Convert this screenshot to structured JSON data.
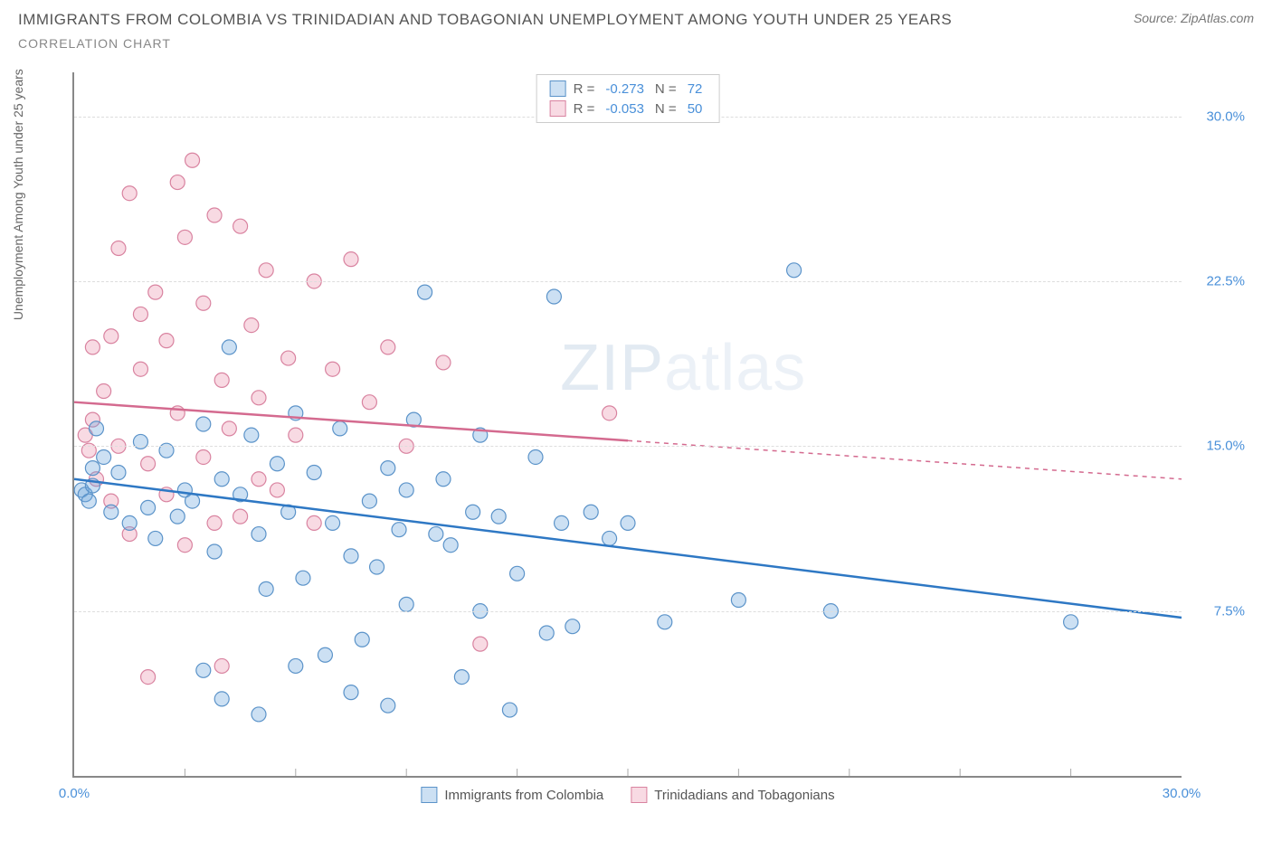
{
  "header": {
    "title": "IMMIGRANTS FROM COLOMBIA VS TRINIDADIAN AND TOBAGONIAN UNEMPLOYMENT AMONG YOUTH UNDER 25 YEARS",
    "subtitle": "CORRELATION CHART",
    "source_prefix": "Source: ",
    "source_name": "ZipAtlas.com"
  },
  "chart": {
    "type": "scatter",
    "y_axis_label": "Unemployment Among Youth under 25 years",
    "x_range": [
      0,
      30
    ],
    "y_range": [
      0,
      32
    ],
    "x_ticks": [
      {
        "value": 0,
        "label": "0.0%"
      },
      {
        "value": 30,
        "label": "30.0%"
      }
    ],
    "x_minor_ticks": [
      3,
      6,
      9,
      12,
      15,
      18,
      21,
      24,
      27
    ],
    "y_ticks": [
      {
        "value": 7.5,
        "label": "7.5%"
      },
      {
        "value": 15.0,
        "label": "15.0%"
      },
      {
        "value": 22.5,
        "label": "22.5%"
      },
      {
        "value": 30.0,
        "label": "30.0%"
      }
    ],
    "background_color": "#ffffff",
    "grid_color": "#dddddd",
    "axis_color": "#888888",
    "tick_label_color": "#4a90d9",
    "series": [
      {
        "name": "Immigrants from Colombia",
        "color_fill": "rgba(110, 165, 220, 0.35)",
        "color_stroke": "#5b93c9",
        "line_color": "#2e78c4",
        "R": "-0.273",
        "N": "72",
        "trend": {
          "x1": 0,
          "y1": 13.5,
          "x2": 30,
          "y2": 7.2,
          "dashed_from_x": null
        },
        "points": [
          [
            0.2,
            13.0
          ],
          [
            0.3,
            12.8
          ],
          [
            0.4,
            12.5
          ],
          [
            0.5,
            13.2
          ],
          [
            0.5,
            14.0
          ],
          [
            0.6,
            15.8
          ],
          [
            0.8,
            14.5
          ],
          [
            1.0,
            12.0
          ],
          [
            1.2,
            13.8
          ],
          [
            1.5,
            11.5
          ],
          [
            1.8,
            15.2
          ],
          [
            2.0,
            12.2
          ],
          [
            2.2,
            10.8
          ],
          [
            2.5,
            14.8
          ],
          [
            2.8,
            11.8
          ],
          [
            3.0,
            13.0
          ],
          [
            3.2,
            12.5
          ],
          [
            3.5,
            16.0
          ],
          [
            3.8,
            10.2
          ],
          [
            4.0,
            13.5
          ],
          [
            4.2,
            19.5
          ],
          [
            4.5,
            12.8
          ],
          [
            4.8,
            15.5
          ],
          [
            5.0,
            11.0
          ],
          [
            5.2,
            8.5
          ],
          [
            5.5,
            14.2
          ],
          [
            5.8,
            12.0
          ],
          [
            6.0,
            16.5
          ],
          [
            6.2,
            9.0
          ],
          [
            6.5,
            13.8
          ],
          [
            6.8,
            5.5
          ],
          [
            7.0,
            11.5
          ],
          [
            7.2,
            15.8
          ],
          [
            7.5,
            10.0
          ],
          [
            7.8,
            6.2
          ],
          [
            8.0,
            12.5
          ],
          [
            8.2,
            9.5
          ],
          [
            8.5,
            14.0
          ],
          [
            8.8,
            11.2
          ],
          [
            9.0,
            7.8
          ],
          [
            9.2,
            16.2
          ],
          [
            9.5,
            22.0
          ],
          [
            9.8,
            11.0
          ],
          [
            10.0,
            13.5
          ],
          [
            10.2,
            10.5
          ],
          [
            10.5,
            4.5
          ],
          [
            10.8,
            12.0
          ],
          [
            11.0,
            15.5
          ],
          [
            11.5,
            11.8
          ],
          [
            11.8,
            3.0
          ],
          [
            12.0,
            9.2
          ],
          [
            12.5,
            14.5
          ],
          [
            13.0,
            21.8
          ],
          [
            13.2,
            11.5
          ],
          [
            13.5,
            6.8
          ],
          [
            14.0,
            12.0
          ],
          [
            14.5,
            10.8
          ],
          [
            15.0,
            11.5
          ],
          [
            16.0,
            7.0
          ],
          [
            18.0,
            8.0
          ],
          [
            19.5,
            23.0
          ],
          [
            20.5,
            7.5
          ],
          [
            27.0,
            7.0
          ],
          [
            3.5,
            4.8
          ],
          [
            4.0,
            3.5
          ],
          [
            5.0,
            2.8
          ],
          [
            6.0,
            5.0
          ],
          [
            7.5,
            3.8
          ],
          [
            8.5,
            3.2
          ],
          [
            9.0,
            13.0
          ],
          [
            11.0,
            7.5
          ],
          [
            12.8,
            6.5
          ]
        ]
      },
      {
        "name": "Trinidadians and Tobagonians",
        "color_fill": "rgba(235, 150, 175, 0.35)",
        "color_stroke": "#d983a0",
        "line_color": "#d46a8f",
        "R": "-0.053",
        "N": "50",
        "trend": {
          "x1": 0,
          "y1": 17.0,
          "x2": 30,
          "y2": 13.5,
          "dashed_from_x": 15
        },
        "points": [
          [
            0.3,
            15.5
          ],
          [
            0.4,
            14.8
          ],
          [
            0.5,
            16.2
          ],
          [
            0.6,
            13.5
          ],
          [
            0.8,
            17.5
          ],
          [
            1.0,
            20.0
          ],
          [
            1.2,
            15.0
          ],
          [
            1.5,
            26.5
          ],
          [
            1.8,
            18.5
          ],
          [
            2.0,
            14.2
          ],
          [
            2.2,
            22.0
          ],
          [
            2.5,
            19.8
          ],
          [
            2.8,
            16.5
          ],
          [
            3.0,
            24.5
          ],
          [
            3.2,
            28.0
          ],
          [
            3.5,
            21.5
          ],
          [
            3.8,
            11.5
          ],
          [
            4.0,
            18.0
          ],
          [
            4.2,
            15.8
          ],
          [
            4.5,
            25.0
          ],
          [
            4.8,
            20.5
          ],
          [
            5.0,
            17.2
          ],
          [
            5.2,
            23.0
          ],
          [
            5.5,
            13.0
          ],
          [
            5.8,
            19.0
          ],
          [
            6.0,
            15.5
          ],
          [
            6.5,
            22.5
          ],
          [
            7.0,
            18.5
          ],
          [
            7.5,
            23.5
          ],
          [
            8.0,
            17.0
          ],
          [
            8.5,
            19.5
          ],
          [
            9.0,
            15.0
          ],
          [
            10.0,
            18.8
          ],
          [
            1.0,
            12.5
          ],
          [
            1.5,
            11.0
          ],
          [
            2.0,
            4.5
          ],
          [
            2.5,
            12.8
          ],
          [
            3.0,
            10.5
          ],
          [
            3.5,
            14.5
          ],
          [
            4.0,
            5.0
          ],
          [
            4.5,
            11.8
          ],
          [
            5.0,
            13.5
          ],
          [
            2.8,
            27.0
          ],
          [
            3.8,
            25.5
          ],
          [
            1.2,
            24.0
          ],
          [
            0.5,
            19.5
          ],
          [
            1.8,
            21.0
          ],
          [
            14.5,
            16.5
          ],
          [
            11.0,
            6.0
          ],
          [
            6.5,
            11.5
          ]
        ]
      }
    ],
    "marker_radius": 8,
    "marker_stroke_width": 1.2,
    "trend_line_width": 2.5
  },
  "watermark": {
    "part1": "ZIP",
    "part2": "atlas"
  }
}
